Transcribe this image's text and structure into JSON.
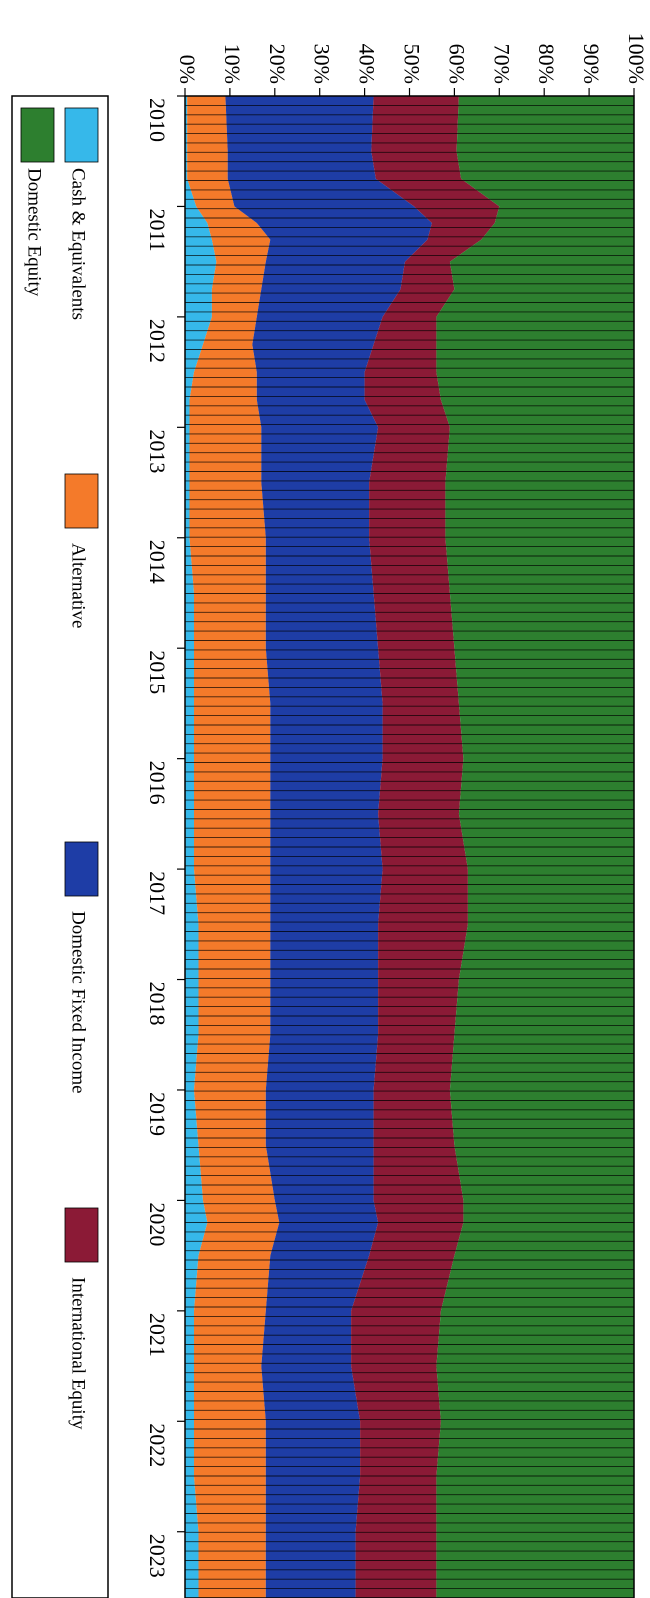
{
  "chart_data": {
    "type": "area",
    "stacked": true,
    "orientation": "rotated-90-clockwise",
    "x_ticks": [
      "2010",
      "2011",
      "2012",
      "2013",
      "2014",
      "2015",
      "2016",
      "2017",
      "2018",
      "2019",
      "2020",
      "2021",
      "2022",
      "2023"
    ],
    "y_ticks": [
      "0%",
      "10%",
      "20%",
      "30%",
      "40%",
      "50%",
      "60%",
      "70%",
      "80%",
      "90%",
      "100%"
    ],
    "ylim": [
      0,
      100
    ],
    "x": [
      2010.0,
      2010.5,
      2010.75,
      2011.0,
      2011.15,
      2011.3,
      2011.5,
      2011.75,
      2012.0,
      2012.25,
      2012.5,
      2012.75,
      2013.0,
      2013.5,
      2014.0,
      2014.5,
      2015.0,
      2015.5,
      2016.0,
      2016.5,
      2017.0,
      2017.5,
      2018.0,
      2018.5,
      2019.0,
      2019.5,
      2020.0,
      2020.2,
      2020.5,
      2021.0,
      2021.5,
      2022.0,
      2022.5,
      2023.0,
      2023.3
    ],
    "series": [
      {
        "name": "Cash & Equivalents",
        "color": "#36b8ea",
        "values": [
          0.5,
          0.5,
          0.5,
          2.5,
          5,
          6,
          7,
          6,
          6,
          4,
          2,
          1,
          1,
          1,
          1,
          2,
          2,
          2,
          2,
          2,
          2,
          3,
          3,
          3,
          2,
          3,
          4,
          5,
          3,
          2,
          2,
          2,
          2,
          3,
          3
        ]
      },
      {
        "name": "Alternative",
        "color": "#f47a2a",
        "values": [
          8.5,
          9,
          9,
          8.5,
          11,
          13,
          11,
          11,
          10,
          11,
          14,
          15,
          16,
          16,
          17,
          16,
          16,
          17,
          17,
          17,
          17,
          16,
          16,
          16,
          16,
          15,
          16,
          16,
          16,
          16,
          15,
          16,
          16,
          15,
          15
        ]
      },
      {
        "name": "Domestic Fixed Income",
        "color": "#1e3da6",
        "values": [
          33,
          32,
          33,
          40,
          39,
          35,
          31,
          31,
          28,
          27,
          24,
          24,
          26,
          24,
          23,
          24,
          25,
          25,
          25,
          24,
          25,
          24,
          24,
          24,
          24,
          24,
          22,
          22,
          22,
          19,
          20,
          21,
          21,
          20,
          20
        ]
      },
      {
        "name": "International Equity",
        "color": "#8b1a36",
        "values": [
          19,
          19,
          19,
          19,
          14,
          12,
          10,
          12,
          12,
          14,
          16,
          17,
          16,
          17,
          17,
          17,
          17,
          17,
          18,
          18,
          19,
          20,
          18,
          17,
          17,
          18,
          20,
          19,
          19,
          20,
          19,
          18,
          17,
          18,
          18
        ]
      },
      {
        "name": "Domestic Equity",
        "color": "#2d7f2f",
        "values": [
          39,
          39.5,
          38.5,
          30,
          31,
          34,
          41,
          40,
          44,
          44,
          44,
          43,
          41,
          42,
          42,
          41,
          40,
          39,
          38,
          39,
          37,
          37,
          39,
          40,
          41,
          40,
          38,
          38,
          40,
          43,
          44,
          43,
          44,
          44,
          44
        ]
      }
    ]
  }
}
